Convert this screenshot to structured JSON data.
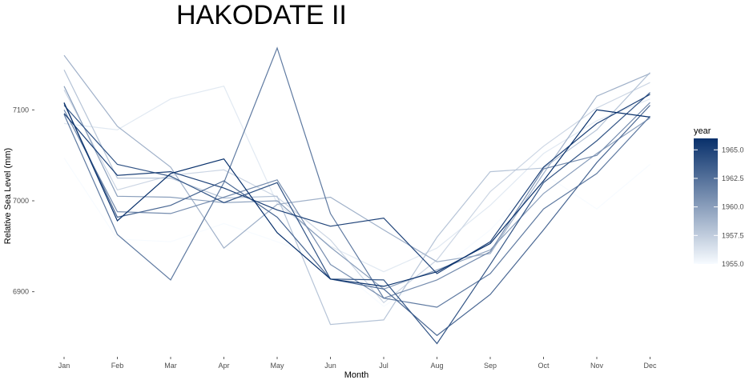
{
  "chart_data": {
    "type": "line",
    "title": "HAKODATE II",
    "xlabel": "Month",
    "ylabel": "Relative Sea Level (mm)",
    "categories": [
      "Jan",
      "Feb",
      "Mar",
      "Apr",
      "May",
      "Jun",
      "Jul",
      "Aug",
      "Sep",
      "Oct",
      "Nov",
      "Dec"
    ],
    "yticks": [
      6900,
      7000,
      7100
    ],
    "ylim": [
      6840,
      7180
    ],
    "grid": false,
    "legend": {
      "title": "year",
      "position": "right",
      "type": "colorbar",
      "ticks": [
        "1955.0",
        "1957.5",
        "1960.0",
        "1962.5",
        "1965.0"
      ],
      "range": [
        1955,
        1966
      ],
      "color_low": "#f7fbff",
      "color_high": "#08306b"
    },
    "series": [
      {
        "year": 1955,
        "values": [
          7047,
          6958,
          6955,
          6975,
          6955,
          6932,
          6884,
          6922,
          6968,
          7030,
          6991,
          7040
        ]
      },
      {
        "year": 1956,
        "values": [
          7085,
          7078,
          7112,
          7126,
          6997,
          6950,
          6922,
          6948,
          6995,
          7052,
          7088,
          7112
        ]
      },
      {
        "year": 1957,
        "values": [
          7122,
          7012,
          7028,
          7034,
          7004,
          6957,
          6888,
          6935,
          7010,
          7060,
          7102,
          7130
        ]
      },
      {
        "year": 1958,
        "values": [
          7144,
          7025,
          7025,
          7003,
          7005,
          6864,
          6869,
          6960,
          7032,
          7036,
          7078,
          7141
        ]
      },
      {
        "year": 1959,
        "values": [
          7160,
          7082,
          7037,
          6948,
          6996,
          7004,
          6968,
          6933,
          6942,
          7030,
          7115,
          7140
        ]
      },
      {
        "year": 1960,
        "values": [
          7126,
          7005,
          7004,
          6998,
          7000,
          6949,
          6903,
          6924,
          6946,
          7008,
          7052,
          7091
        ]
      },
      {
        "year": 1961,
        "values": [
          7100,
          6988,
          6986,
          7004,
          7023,
          6930,
          6893,
          6913,
          6944,
          7035,
          7050,
          7108
        ]
      },
      {
        "year": 1962,
        "values": [
          7095,
          6963,
          6913,
          7020,
          7168,
          6986,
          6893,
          6883,
          6920,
          6991,
          7030,
          7093
        ]
      },
      {
        "year": 1963,
        "values": [
          7107,
          6982,
          6995,
          7022,
          6982,
          6914,
          6903,
          6852,
          6897,
          6968,
          7042,
          7105
        ]
      },
      {
        "year": 1964,
        "values": [
          7105,
          7040,
          7027,
          6998,
          7020,
          6914,
          6913,
          6843,
          6930,
          7020,
          7066,
          7119
        ]
      },
      {
        "year": 1965,
        "values": [
          7096,
          7028,
          7032,
          7014,
          6990,
          6972,
          6981,
          6920,
          6955,
          7037,
          7085,
          7117
        ]
      },
      {
        "year": 1966,
        "values": [
          7108,
          6978,
          7030,
          7046,
          6965,
          6914,
          6906,
          6922,
          6953,
          7022,
          7100,
          7092
        ]
      }
    ]
  }
}
